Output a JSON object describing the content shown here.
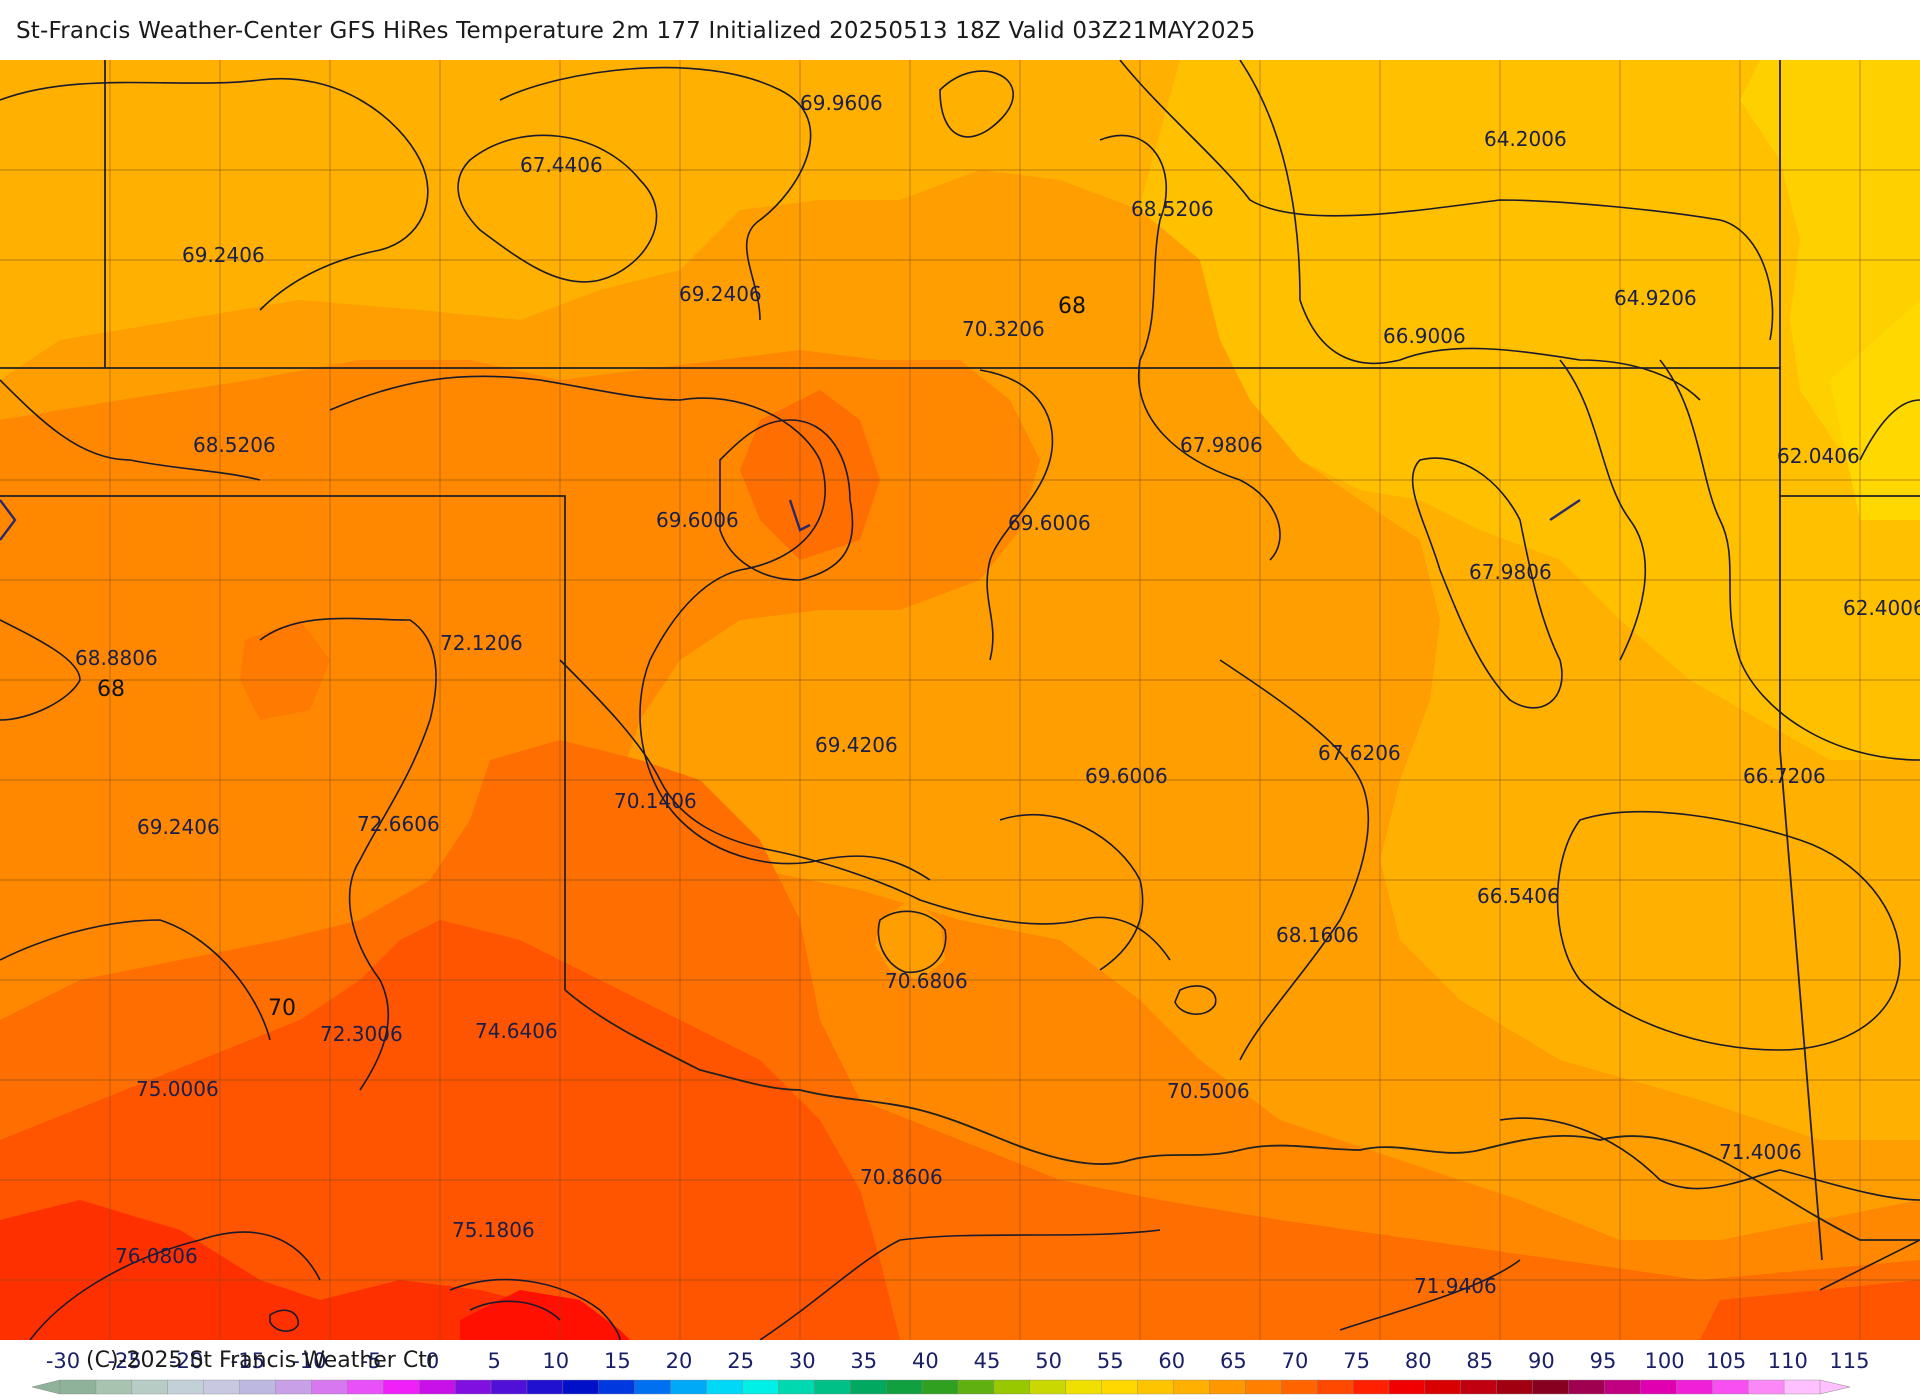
{
  "title": "St-Francis Weather-Center GFS HiRes Temperature 2m  177 Initialized 20250513 18Z Valid 03Z21MAY2025",
  "copyright": "(C)-2025 St Francis Weather Ctr",
  "colors": {
    "band_62": "#ffd000",
    "band_64": "#ffc000",
    "band_66": "#ffb000",
    "band_68": "#ff9e00",
    "band_70": "#ff8800",
    "band_72": "#ff6e00",
    "band_74": "#ff5400",
    "band_76": "#ff3000",
    "band_78": "#ff1000",
    "contour_line": "#1a1a2e",
    "state_line": "#222222",
    "county_line": "#7a4a20",
    "label_text": "#1a1f4a"
  },
  "map": {
    "point_labels": [
      {
        "text": "69.9606"
      },
      {
        "text": "67.4406"
      },
      {
        "text": "64.2006"
      },
      {
        "text": "68.5206"
      },
      {
        "text": "69.2406"
      },
      {
        "text": "69.2406"
      },
      {
        "text": "70.3206"
      },
      {
        "text": "66.9006"
      },
      {
        "text": "64.9206"
      },
      {
        "text": "68.5206"
      },
      {
        "text": "67.9806"
      },
      {
        "text": "62.0406"
      },
      {
        "text": "69.6006"
      },
      {
        "text": "69.6006"
      },
      {
        "text": "67.9806"
      },
      {
        "text": "62.4006"
      },
      {
        "text": "68.8806"
      },
      {
        "text": "72.1206"
      },
      {
        "text": "69.4206"
      },
      {
        "text": "69.6006"
      },
      {
        "text": "67.6206"
      },
      {
        "text": "66.7206"
      },
      {
        "text": "69.2406"
      },
      {
        "text": "72.6606"
      },
      {
        "text": "70.1406"
      },
      {
        "text": "66.5406"
      },
      {
        "text": "68.1606"
      },
      {
        "text": "70.6806"
      },
      {
        "text": "72.3006"
      },
      {
        "text": "74.6406"
      },
      {
        "text": "75.0006"
      },
      {
        "text": "70.5006"
      },
      {
        "text": "71.4006"
      },
      {
        "text": "70.8606"
      },
      {
        "text": "75.1806"
      },
      {
        "text": "76.0806"
      },
      {
        "text": "71.9406"
      }
    ],
    "contour_labels": [
      {
        "text": "68"
      },
      {
        "text": "68"
      },
      {
        "text": "70"
      }
    ]
  },
  "color_scale": {
    "ticks": [
      "-30",
      "-25",
      "-20",
      "-15",
      "-10",
      "-5",
      "0",
      "5",
      "10",
      "15",
      "20",
      "25",
      "30",
      "35",
      "40",
      "45",
      "50",
      "55",
      "60",
      "65",
      "70",
      "75",
      "80",
      "85",
      "90",
      "95",
      "100",
      "105",
      "110",
      "115"
    ],
    "swatches": [
      "#8fb39a",
      "#a8c4b0",
      "#b8ccc6",
      "#c4d0d8",
      "#c8c8e0",
      "#bcb8e0",
      "#c8a0e8",
      "#d878f0",
      "#e850f8",
      "#f020f8",
      "#c810e8",
      "#8010e0",
      "#5010d8",
      "#2010d0",
      "#0010c8",
      "#0038e0",
      "#0070f0",
      "#00a8f8",
      "#00d8f8",
      "#00f0e8",
      "#00d8b0",
      "#00c088",
      "#00a860",
      "#10a040",
      "#30a020",
      "#60b010",
      "#98c800",
      "#c8d800",
      "#f0e000",
      "#ffd800",
      "#ffc400",
      "#ffb000",
      "#ff9800",
      "#ff8000",
      "#ff6400",
      "#ff4800",
      "#ff2000",
      "#f00000",
      "#d80000",
      "#c00010",
      "#a00010",
      "#880020",
      "#a00050",
      "#c00080",
      "#e000b0",
      "#f020d8",
      "#f850f0",
      "#fc88f8",
      "#ffc0ff"
    ]
  }
}
